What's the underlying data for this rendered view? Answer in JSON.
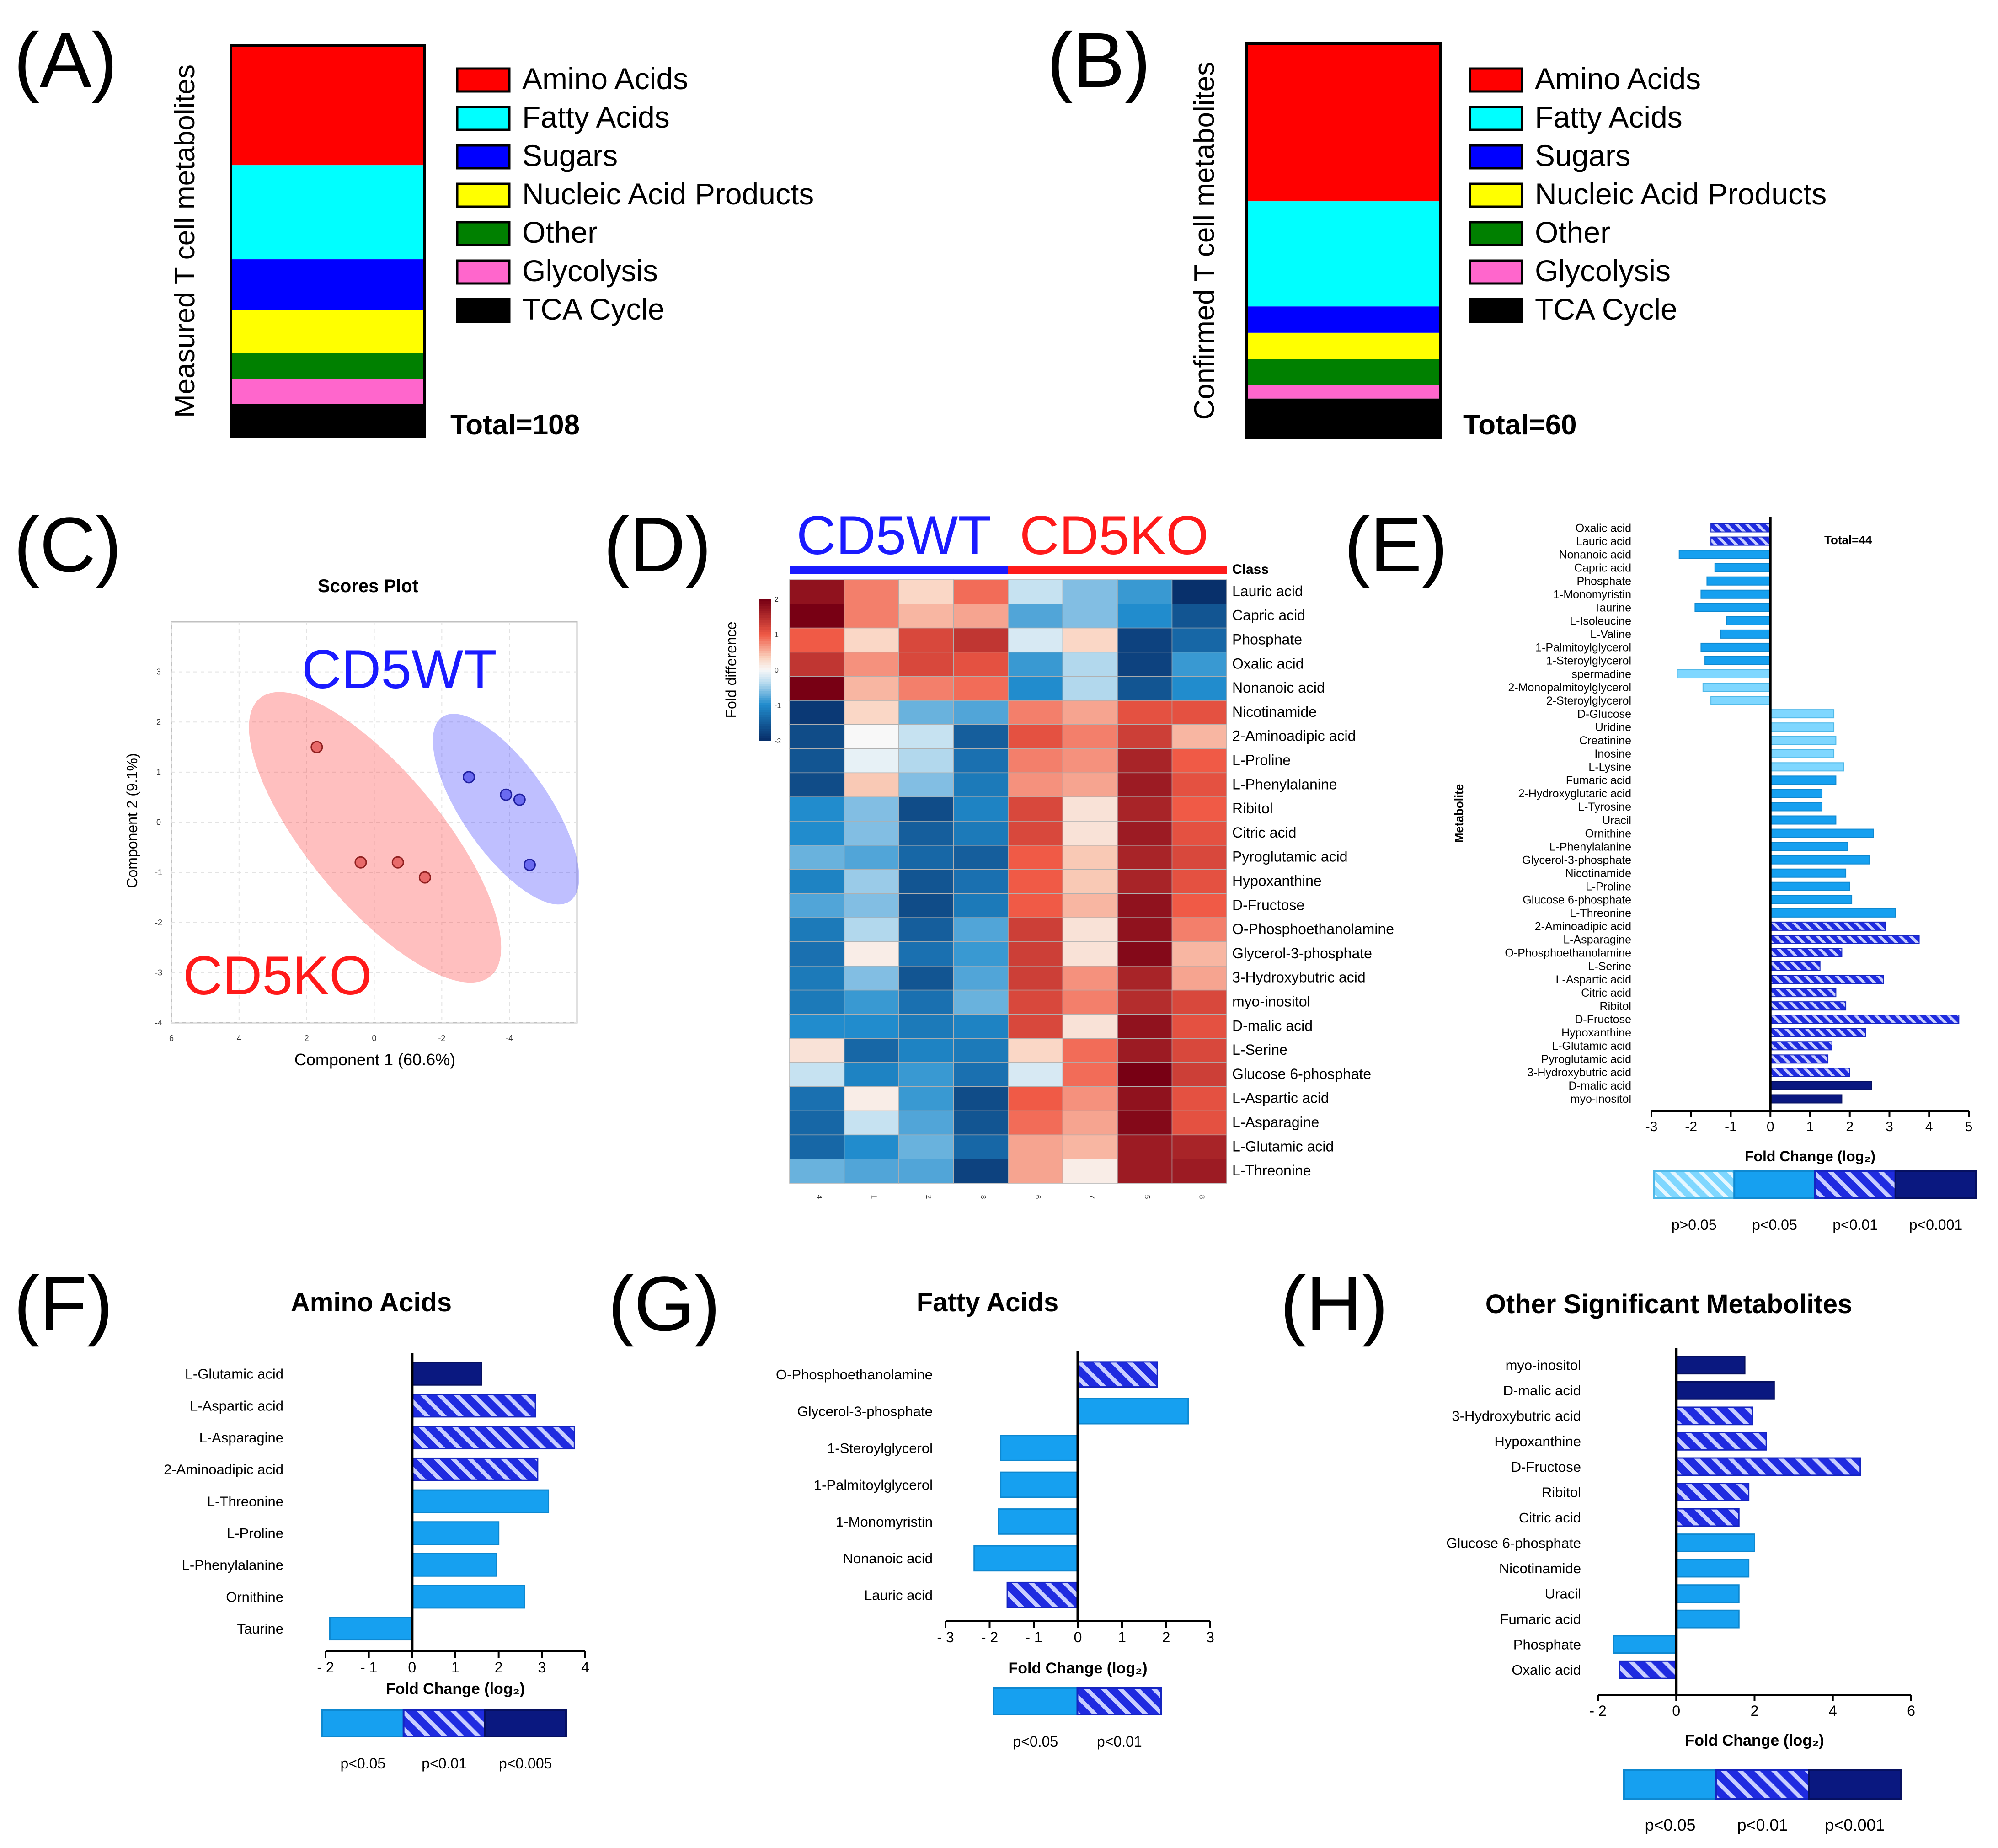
{
  "colors": {
    "amino": "#ff0000",
    "fatty": "#00ffff",
    "sugars": "#0000ff",
    "nucleic": "#ffff00",
    "other": "#008000",
    "glycolysis": "#ff66cc",
    "tca": "#000000",
    "p_gt_05": "#7fd7ff",
    "p_lt_05": "#16a0f0",
    "p_lt_01": "#1f2be0",
    "p_lt_001": "#0a1880",
    "wt": "#1a1aff",
    "ko": "#ff1a1a"
  },
  "panels": {
    "A": "(A)",
    "B": "(B)",
    "C": "(C)",
    "D": "(D)",
    "E": "(E)",
    "F": "(F)",
    "G": "(G)",
    "H": "(H)"
  },
  "chart_data": [
    {
      "id": "A",
      "type": "bar",
      "stacked": true,
      "ylabel": "Measured T cell metabolites",
      "total_label": "Total=108",
      "categories": [
        "Amino Acids",
        "Fatty Acids",
        "Sugars",
        "Nucleic Acid Products",
        "Other",
        "Glycolysis",
        "TCA Cycle"
      ],
      "values": [
        33,
        26,
        14,
        12,
        7,
        7,
        9
      ]
    },
    {
      "id": "B",
      "type": "bar",
      "stacked": true,
      "ylabel": "Confirmed T cell metabolites",
      "total_label": "Total=60",
      "categories": [
        "Amino Acids",
        "Fatty Acids",
        "Sugars",
        "Nucleic Acid Products",
        "Other",
        "Glycolysis",
        "TCA Cycle"
      ],
      "values": [
        24,
        16,
        4,
        4,
        4,
        2,
        6
      ]
    },
    {
      "id": "C",
      "type": "scatter",
      "title": "Scores Plot",
      "xlabel": "Component 1 (60.6%)",
      "ylabel": "Component 2 (9.1%)",
      "xlim": [
        6,
        -6
      ],
      "ylim": [
        -4,
        4
      ],
      "xticks": [
        6,
        4,
        2,
        0,
        -2,
        -4
      ],
      "yticks": [
        3,
        2,
        1,
        0,
        -1,
        -2,
        -3,
        -4
      ],
      "series": [
        {
          "name": "CD5WT",
          "points": [
            [
              -2.8,
              0.9
            ],
            [
              -3.9,
              0.55
            ],
            [
              -4.3,
              0.45
            ],
            [
              -4.6,
              -0.85
            ]
          ]
        },
        {
          "name": "CD5KO",
          "points": [
            [
              1.7,
              1.5
            ],
            [
              0.4,
              -0.8
            ],
            [
              -0.7,
              -0.8
            ],
            [
              -1.5,
              -1.1
            ]
          ]
        }
      ]
    },
    {
      "id": "D",
      "type": "heatmap",
      "groups": [
        "CD5WT",
        "CD5KO"
      ],
      "class_label": "Class",
      "legend_label": "Fold difference",
      "scale_ticks": [
        "2",
        "1",
        "0",
        "-1",
        "-2"
      ],
      "columns": [
        "4",
        "1",
        "2",
        "3",
        "6",
        "7",
        "5",
        "8"
      ],
      "rows": [
        "Lauric acid",
        "Capric acid",
        "Phosphate",
        "Oxalic acid",
        "Nonanoic acid",
        "Nicotinamide",
        "2-Aminoadipic acid",
        "L-Proline",
        "L-Phenylalanine",
        "Ribitol",
        "Citric acid",
        "Pyroglutamic acid",
        "Hypoxanthine",
        "D-Fructose",
        "O-Phosphoethanolamine",
        "Glycerol-3-phosphate",
        "3-Hydroxybutric acid",
        "myo-inositol",
        "D-malic acid",
        "L-Serine",
        "Glucose 6-phosphate",
        "L-Aspartic acid",
        "L-Asparagine",
        "L-Glutamic acid",
        "L-Threonine"
      ],
      "values": [
        [
          1.8,
          0.8,
          0.3,
          0.9,
          -0.3,
          -0.6,
          -0.9,
          -2.0
        ],
        [
          2.3,
          0.8,
          0.5,
          0.6,
          -0.8,
          -0.6,
          -1.0,
          -1.6
        ],
        [
          1.0,
          0.3,
          1.2,
          1.4,
          -0.2,
          0.3,
          -1.8,
          -1.4
        ],
        [
          1.4,
          0.7,
          1.2,
          1.1,
          -0.9,
          -0.4,
          -1.8,
          -0.9
        ],
        [
          2.1,
          0.5,
          0.8,
          0.9,
          -1.0,
          -0.4,
          -1.6,
          -1.0
        ],
        [
          -1.9,
          0.3,
          -0.7,
          -0.8,
          0.8,
          0.6,
          1.1,
          1.1
        ],
        [
          -1.7,
          0.0,
          -0.3,
          -1.5,
          1.1,
          0.8,
          1.3,
          0.5
        ],
        [
          -1.6,
          -0.1,
          -0.4,
          -1.3,
          0.8,
          0.7,
          1.6,
          1.0
        ],
        [
          -1.7,
          0.4,
          -0.6,
          -1.2,
          0.7,
          0.6,
          1.7,
          1.1
        ],
        [
          -1.0,
          -0.6,
          -1.7,
          -1.1,
          1.2,
          0.2,
          1.6,
          1.0
        ],
        [
          -1.0,
          -0.6,
          -1.5,
          -1.2,
          1.2,
          0.2,
          1.7,
          1.1
        ],
        [
          -0.7,
          -0.8,
          -1.4,
          -1.5,
          1.0,
          0.4,
          1.6,
          1.2
        ],
        [
          -1.1,
          -0.5,
          -1.6,
          -1.3,
          1.0,
          0.4,
          1.6,
          1.1
        ],
        [
          -0.8,
          -0.6,
          -1.7,
          -1.2,
          1.0,
          0.5,
          1.8,
          1.0
        ],
        [
          -1.2,
          -0.4,
          -1.5,
          -0.8,
          1.3,
          0.2,
          1.8,
          0.8
        ],
        [
          -1.3,
          0.1,
          -1.3,
          -0.9,
          1.3,
          0.2,
          1.9,
          0.5
        ],
        [
          -1.2,
          -0.6,
          -1.6,
          -0.8,
          1.3,
          0.7,
          1.6,
          0.6
        ],
        [
          -1.2,
          -0.9,
          -1.3,
          -0.7,
          1.2,
          0.8,
          1.5,
          1.2
        ],
        [
          -1.0,
          -1.0,
          -1.2,
          -1.1,
          1.2,
          0.2,
          1.8,
          1.1
        ],
        [
          0.2,
          -1.4,
          -1.1,
          -1.2,
          0.3,
          0.9,
          1.7,
          1.2
        ],
        [
          -0.3,
          -1.1,
          -0.9,
          -1.3,
          -0.2,
          0.9,
          2.1,
          1.3
        ],
        [
          -1.3,
          0.1,
          -0.9,
          -1.7,
          1.0,
          0.7,
          1.8,
          1.1
        ],
        [
          -1.4,
          -0.3,
          -0.8,
          -1.6,
          0.9,
          0.6,
          1.9,
          1.1
        ],
        [
          -1.4,
          -1.0,
          -0.7,
          -1.4,
          0.6,
          0.5,
          1.7,
          1.6
        ],
        [
          -0.7,
          -0.8,
          -0.8,
          -1.8,
          0.6,
          0.1,
          1.7,
          1.7
        ]
      ]
    },
    {
      "id": "E",
      "type": "bar",
      "orientation": "horizontal",
      "total_label": "Total=44",
      "xlabel": "Fold  Change  (log₂)",
      "ylabel": "Metabolite",
      "xlim": [
        -3,
        5
      ],
      "xticks": [
        "-3",
        "-2",
        "-1",
        "0",
        "1",
        "2",
        "3",
        "4",
        "5"
      ],
      "significance_legend": [
        "p>0.05",
        "p<0.05",
        "p<0.01",
        "p<0.001"
      ],
      "categories": [
        "Oxalic acid",
        "Lauric acid",
        "Nonanoic acid",
        "Capric acid",
        "Phosphate",
        "1-Monomyristin",
        "Taurine",
        "L-Isoleucine",
        "L-Valine",
        "1-Palmitoylglycerol",
        "1-Steroylglycerol",
        "spermadine",
        "2-Monopalmitoylglycerol",
        "2-Steroylglycerol",
        "D-Glucose",
        "Uridine",
        "Creatinine",
        "Inosine",
        "L-Lysine",
        "Fumaric acid",
        "2-Hydroxyglutaric acid",
        "L-Tyrosine",
        "Uracil",
        "Ornithine",
        "L-Phenylalanine",
        "Glycerol-3-phosphate",
        "Nicotinamide",
        "L-Proline",
        "Glucose 6-phosphate",
        "L-Threonine",
        "2-Aminoadipic acid",
        "L-Asparagine",
        "O-Phosphoethanolamine",
        "L-Serine",
        "L-Aspartic acid",
        "Citric acid",
        "Ribitol",
        "D-Fructose",
        "Hypoxanthine",
        "L-Glutamic acid",
        "Pyroglutamic acid",
        "3-Hydroxybutric acid",
        "D-malic acid",
        "myo-inositol"
      ],
      "values": [
        -1.5,
        -1.5,
        -2.3,
        -1.4,
        -1.6,
        -1.75,
        -1.9,
        -1.1,
        -1.25,
        -1.75,
        -1.65,
        -2.35,
        -1.7,
        -1.5,
        1.6,
        1.6,
        1.65,
        1.6,
        1.85,
        1.65,
        1.3,
        1.3,
        1.65,
        2.6,
        1.95,
        2.5,
        1.9,
        2.0,
        2.05,
        3.15,
        2.9,
        3.75,
        1.8,
        1.25,
        2.85,
        1.65,
        1.9,
        4.75,
        2.4,
        1.55,
        1.45,
        2.0,
        2.55,
        1.8
      ],
      "significance": [
        "p<0.01",
        "p<0.01",
        "p<0.05",
        "p<0.05",
        "p<0.05",
        "p<0.05",
        "p<0.05",
        "p<0.05",
        "p<0.05",
        "p<0.05",
        "p<0.05",
        "p>0.05",
        "p>0.05",
        "p>0.05",
        "p>0.05",
        "p>0.05",
        "p>0.05",
        "p>0.05",
        "p>0.05",
        "p<0.05",
        "p<0.05",
        "p<0.05",
        "p<0.05",
        "p<0.05",
        "p<0.05",
        "p<0.05",
        "p<0.05",
        "p<0.05",
        "p<0.05",
        "p<0.05",
        "p<0.01",
        "p<0.01",
        "p<0.01",
        "p<0.01",
        "p<0.01",
        "p<0.01",
        "p<0.01",
        "p<0.01",
        "p<0.01",
        "p<0.01",
        "p<0.01",
        "p<0.01",
        "p<0.001",
        "p<0.001"
      ]
    },
    {
      "id": "F",
      "type": "bar",
      "orientation": "horizontal",
      "title": "Amino Acids",
      "xlabel": "Fold  Change  (log₂)",
      "xlim": [
        -2,
        4
      ],
      "xticks": [
        "- 2",
        "- 1",
        "0",
        "1",
        "2",
        "3",
        "4"
      ],
      "significance_legend": [
        "p<0.05",
        "p<0.01",
        "p<0.005"
      ],
      "categories": [
        "L-Glutamic acid",
        "L-Aspartic acid",
        "L-Asparagine",
        "2-Aminoadipic acid",
        "L-Threonine",
        "L-Proline",
        "L-Phenylalanine",
        "Ornithine",
        "Taurine"
      ],
      "values": [
        1.6,
        2.85,
        3.75,
        2.9,
        3.15,
        2.0,
        1.95,
        2.6,
        -1.9
      ],
      "significance": [
        "p<0.005",
        "p<0.01",
        "p<0.01",
        "p<0.01",
        "p<0.05",
        "p<0.05",
        "p<0.05",
        "p<0.05",
        "p<0.05"
      ]
    },
    {
      "id": "G",
      "type": "bar",
      "orientation": "horizontal",
      "title": "Fatty Acids",
      "xlabel": "Fold  Change  (log₂)",
      "xlim": [
        -3,
        3
      ],
      "xticks": [
        "- 3",
        "- 2",
        "- 1",
        "0",
        "1",
        "2",
        "3"
      ],
      "significance_legend": [
        "p<0.05",
        "p<0.01"
      ],
      "categories": [
        "O-Phosphoethanolamine",
        "Glycerol-3-phosphate",
        "1-Steroylglycerol",
        "1-Palmitoylglycerol",
        "1-Monomyristin",
        "Nonanoic acid",
        "Lauric acid"
      ],
      "values": [
        1.8,
        2.5,
        -1.75,
        -1.75,
        -1.8,
        -2.35,
        -1.6
      ],
      "significance": [
        "p<0.01",
        "p<0.05",
        "p<0.05",
        "p<0.05",
        "p<0.05",
        "p<0.05",
        "p<0.01"
      ]
    },
    {
      "id": "H",
      "type": "bar",
      "orientation": "horizontal",
      "title": "Other Significant Metabolites",
      "xlabel": "Fold  Change  (log₂)",
      "xlim": [
        -2,
        6
      ],
      "xticks": [
        "- 2",
        "0",
        "2",
        "4",
        "6"
      ],
      "significance_legend": [
        "p<0.05",
        "p<0.01",
        "p<0.001"
      ],
      "categories": [
        "myo-inositol",
        "D-malic acid",
        "3-Hydroxybutric acid",
        "Hypoxanthine",
        "D-Fructose",
        "Ribitol",
        "Citric acid",
        "Glucose 6-phosphate",
        "Nicotinamide",
        "Uracil",
        "Fumaric acid",
        "Phosphate",
        "Oxalic acid"
      ],
      "values": [
        1.75,
        2.5,
        1.95,
        2.3,
        4.7,
        1.85,
        1.6,
        2.0,
        1.85,
        1.6,
        1.6,
        -1.6,
        -1.45
      ],
      "significance": [
        "p<0.001",
        "p<0.001",
        "p<0.01",
        "p<0.01",
        "p<0.01",
        "p<0.01",
        "p<0.01",
        "p<0.05",
        "p<0.05",
        "p<0.05",
        "p<0.05",
        "p<0.05",
        "p<0.01"
      ]
    }
  ]
}
